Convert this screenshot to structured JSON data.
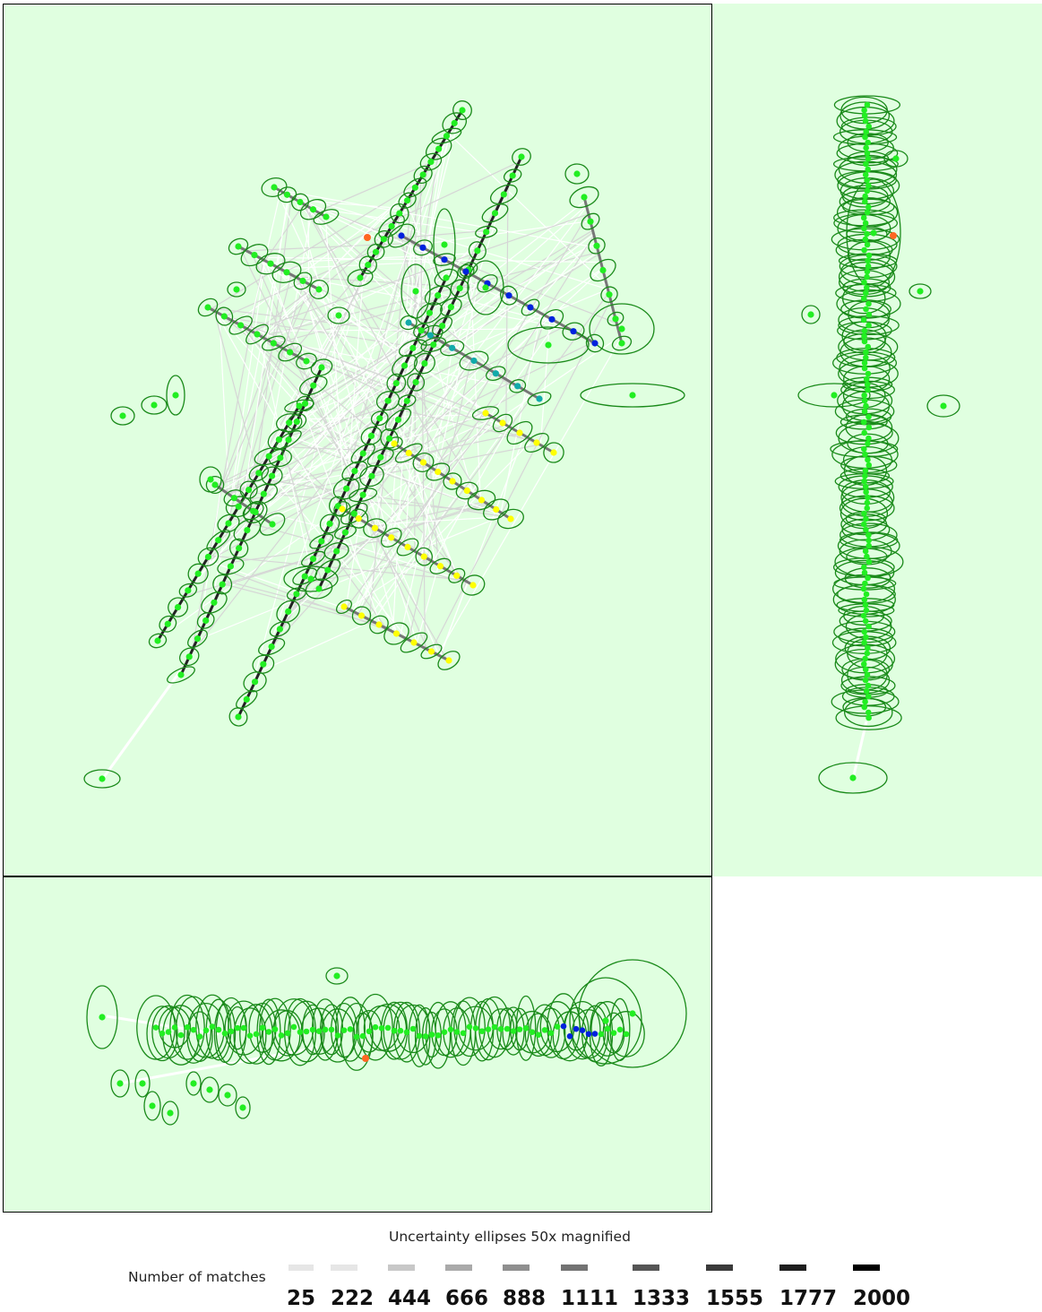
{
  "caption": "Uncertainty ellipses 50x magnified",
  "legend": {
    "label": "Number of matches",
    "values": [
      "25",
      "222",
      "444",
      "666",
      "888",
      "1111",
      "1333",
      "1555",
      "1777",
      "2000"
    ],
    "colors": [
      "#e6e6e6",
      "#e6e6e6",
      "#c8c8c8",
      "#aaaaaa",
      "#8f8f8f",
      "#737373",
      "#555555",
      "#3a3a3a",
      "#1e1e1e",
      "#000000"
    ]
  },
  "colors": {
    "panel_background": "#e0ffe0",
    "ellipse": "#1a8a1a",
    "camera_green": "#22ee22",
    "camera_yellow": "#ffff00",
    "camera_blue": "#0022dd",
    "camera_teal": "#11aaaa",
    "camera_orange": "#ff6622"
  }
}
